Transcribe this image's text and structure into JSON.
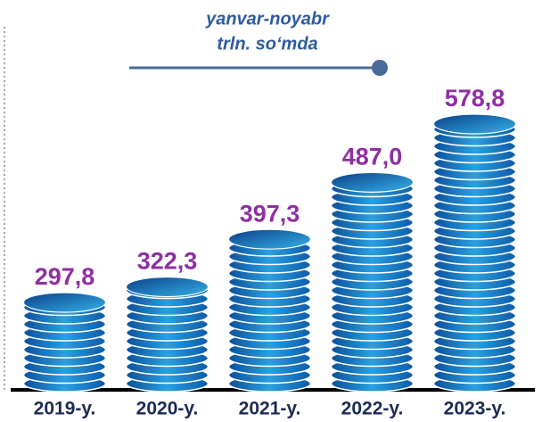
{
  "chart_data": {
    "type": "bar",
    "subtitle": [
      "yanvar-noyabr",
      "trln. so‘mda"
    ],
    "categories": [
      "2019-y.",
      "2020-y.",
      "2021-y.",
      "2022-y.",
      "2023-y."
    ],
    "values": [
      297.8,
      322.3,
      397.3,
      487.0,
      578.8
    ],
    "value_labels": [
      "297,8",
      "322,3",
      "397,3",
      "487,0",
      "578,8"
    ],
    "color": "#1e88d0"
  }
}
